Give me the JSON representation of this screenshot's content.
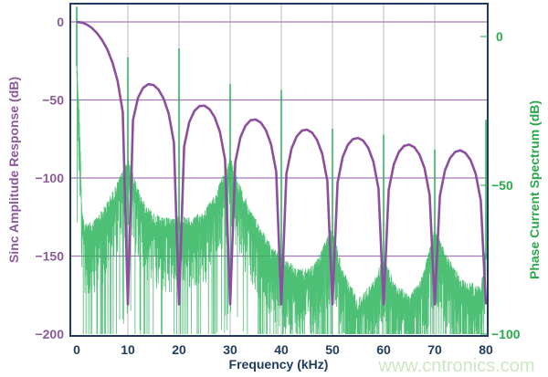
{
  "chart_data": {
    "type": "line",
    "xlabel": "Frequency (kHz)",
    "ylabel": "Sinc Amplitude Response (dB)",
    "y2label": "Phase Current Spectrum (dB)",
    "xlim": [
      0,
      80
    ],
    "ylim": [
      -200,
      0
    ],
    "y2lim": [
      -100,
      0
    ],
    "xticks": [
      0,
      10,
      20,
      30,
      40,
      50,
      60,
      70,
      80
    ],
    "yticks": [
      0,
      -50,
      -100,
      -150,
      -200
    ],
    "y2ticks": [
      0,
      -50,
      -100
    ],
    "grid": true,
    "colors": {
      "sinc": "#8b4f9e",
      "spectrum": "#2fb55e",
      "frame": "#1f3b5e",
      "left_axis": "#8a5a9c",
      "right_axis": "#2aa84a",
      "xgrid": "#b8b8c0",
      "ygrid": "#a279b0"
    },
    "series": [
      {
        "axis": "left",
        "style": "line",
        "x": [
          0,
          1,
          2,
          3,
          4,
          5,
          6,
          7,
          8,
          9,
          10,
          11,
          12,
          13,
          14,
          15,
          16,
          17,
          18,
          19,
          20,
          21,
          22,
          23,
          24,
          25,
          26,
          27,
          28,
          29,
          30,
          31,
          32,
          33,
          34,
          35,
          36,
          37,
          38,
          39,
          40,
          41,
          42,
          43,
          44,
          45,
          46,
          47,
          48,
          49,
          50,
          51,
          52,
          53,
          54,
          55,
          56,
          57,
          58,
          59,
          60,
          61,
          62,
          63,
          64,
          65,
          66,
          67,
          68,
          69,
          70,
          71,
          72,
          73,
          74,
          75,
          76,
          77,
          78,
          79,
          80
        ],
        "y": [
          0,
          -0.4,
          -1.7,
          -4.0,
          -7.3,
          -11.8,
          -17.8,
          -26.1,
          -37.9,
          -57.7,
          -181,
          -62.9,
          -48.4,
          -42.2,
          -39.9,
          -40.4,
          -43.4,
          -49.2,
          -59.0,
          -77.2,
          -181,
          -79.8,
          -64.2,
          -57.1,
          -53.9,
          -53.7,
          -56.0,
          -61.2,
          -70.5,
          -88.2,
          -181,
          -89.9,
          -74.0,
          -66.5,
          -63.0,
          -62.5,
          -64.5,
          -69.4,
          -78.5,
          -95.9,
          -181,
          -97.2,
          -81.1,
          -73.4,
          -69.7,
          -69.0,
          -70.9,
          -75.7,
          -84.5,
          -101.8,
          -181,
          -102.9,
          -86.6,
          -78.8,
          -75.1,
          -74.3,
          -76.0,
          -80.7,
          -89.5,
          -106.7,
          -181,
          -107.6,
          -91.2,
          -83.3,
          -79.5,
          -78.6,
          -80.3,
          -84.9,
          -93.6,
          -110.8,
          -181,
          -111.5,
          -95.1,
          -87.2,
          -83.3,
          -82.3,
          -84.0,
          -88.5,
          -97.2,
          -114.3,
          -181
        ]
      },
      {
        "axis": "right",
        "style": "noisy-spectrum",
        "envelope_x": [
          0,
          0.6,
          1,
          1.5,
          3,
          5,
          7,
          9,
          10,
          11,
          13,
          15,
          17,
          20,
          22.5,
          25,
          27,
          29,
          30,
          32,
          34,
          36,
          38,
          40,
          43,
          45,
          47,
          49,
          50,
          52,
          55,
          58,
          60,
          62,
          65,
          68,
          70,
          72,
          75,
          79,
          80
        ],
        "envelope_y": [
          -5,
          -30,
          -55,
          -63,
          -62,
          -58,
          -52,
          -45,
          -40,
          -46,
          -55,
          -59,
          -61,
          -60,
          -61,
          -58,
          -53,
          -45,
          -40,
          -50,
          -58,
          -64,
          -70,
          -73,
          -78,
          -78,
          -75,
          -67,
          -64,
          -78,
          -88,
          -82,
          -74,
          -82,
          -87,
          -78,
          -64,
          -72,
          -81,
          -84,
          -70
        ],
        "noise_depth_db": 20,
        "spikes": [
          {
            "x": 0,
            "y": 10
          },
          {
            "x": 10,
            "y": -7
          },
          {
            "x": 20,
            "y": -4
          },
          {
            "x": 30,
            "y": -16
          },
          {
            "x": 40,
            "y": -18
          },
          {
            "x": 50,
            "y": -31
          },
          {
            "x": 60,
            "y": -33
          },
          {
            "x": 70,
            "y": -38
          },
          {
            "x": 80,
            "y": -28
          }
        ]
      }
    ]
  },
  "watermark": "www.cntronics.com"
}
